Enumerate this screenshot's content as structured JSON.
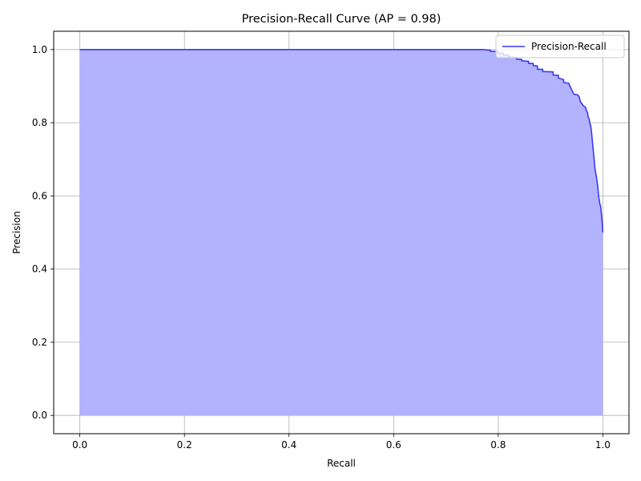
{
  "chart_data": {
    "type": "area",
    "title": "Precision-Recall Curve (AP = 0.98)",
    "xlabel": "Recall",
    "ylabel": "Precision",
    "xlim": [
      -0.05,
      1.05
    ],
    "ylim": [
      -0.05,
      1.05
    ],
    "xticks": [
      "0.0",
      "0.2",
      "0.4",
      "0.6",
      "0.8",
      "1.0"
    ],
    "yticks": [
      "0.0",
      "0.2",
      "0.4",
      "0.6",
      "0.8",
      "1.0"
    ],
    "grid": true,
    "legend_position": "top-right",
    "series": [
      {
        "name": "Precision-Recall",
        "color": "#3a3af0",
        "fill_color": "#b2b2ff",
        "points": [
          [
            0.0,
            1.0
          ],
          [
            0.77,
            1.0
          ],
          [
            0.785,
            0.998
          ],
          [
            0.785,
            0.995
          ],
          [
            0.8,
            0.995
          ],
          [
            0.8,
            0.99
          ],
          [
            0.81,
            0.99
          ],
          [
            0.81,
            0.985
          ],
          [
            0.82,
            0.985
          ],
          [
            0.82,
            0.98
          ],
          [
            0.835,
            0.978
          ],
          [
            0.835,
            0.974
          ],
          [
            0.845,
            0.973
          ],
          [
            0.845,
            0.969
          ],
          [
            0.858,
            0.968
          ],
          [
            0.858,
            0.962
          ],
          [
            0.867,
            0.962
          ],
          [
            0.867,
            0.956
          ],
          [
            0.875,
            0.955
          ],
          [
            0.875,
            0.946
          ],
          [
            0.885,
            0.946
          ],
          [
            0.885,
            0.94
          ],
          [
            0.905,
            0.939
          ],
          [
            0.905,
            0.93
          ],
          [
            0.915,
            0.93
          ],
          [
            0.915,
            0.922
          ],
          [
            0.925,
            0.918
          ],
          [
            0.925,
            0.91
          ],
          [
            0.935,
            0.908
          ],
          [
            0.937,
            0.9
          ],
          [
            0.94,
            0.892
          ],
          [
            0.942,
            0.885
          ],
          [
            0.945,
            0.878
          ],
          [
            0.952,
            0.876
          ],
          [
            0.955,
            0.87
          ],
          [
            0.957,
            0.858
          ],
          [
            0.96,
            0.852
          ],
          [
            0.963,
            0.846
          ],
          [
            0.967,
            0.842
          ],
          [
            0.968,
            0.836
          ],
          [
            0.971,
            0.826
          ],
          [
            0.972,
            0.815
          ],
          [
            0.974,
            0.81
          ],
          [
            0.975,
            0.8
          ],
          [
            0.977,
            0.79
          ],
          [
            0.978,
            0.78
          ],
          [
            0.979,
            0.765
          ],
          [
            0.98,
            0.75
          ],
          [
            0.981,
            0.735
          ],
          [
            0.982,
            0.72
          ],
          [
            0.983,
            0.705
          ],
          [
            0.984,
            0.69
          ],
          [
            0.985,
            0.675
          ],
          [
            0.986,
            0.665
          ],
          [
            0.988,
            0.65
          ],
          [
            0.989,
            0.64
          ],
          [
            0.99,
            0.63
          ],
          [
            0.991,
            0.615
          ],
          [
            0.992,
            0.6
          ],
          [
            0.993,
            0.59
          ],
          [
            0.994,
            0.58
          ],
          [
            0.996,
            0.57
          ],
          [
            0.997,
            0.555
          ],
          [
            0.998,
            0.54
          ],
          [
            0.999,
            0.525
          ],
          [
            1.0,
            0.5
          ]
        ]
      }
    ]
  }
}
